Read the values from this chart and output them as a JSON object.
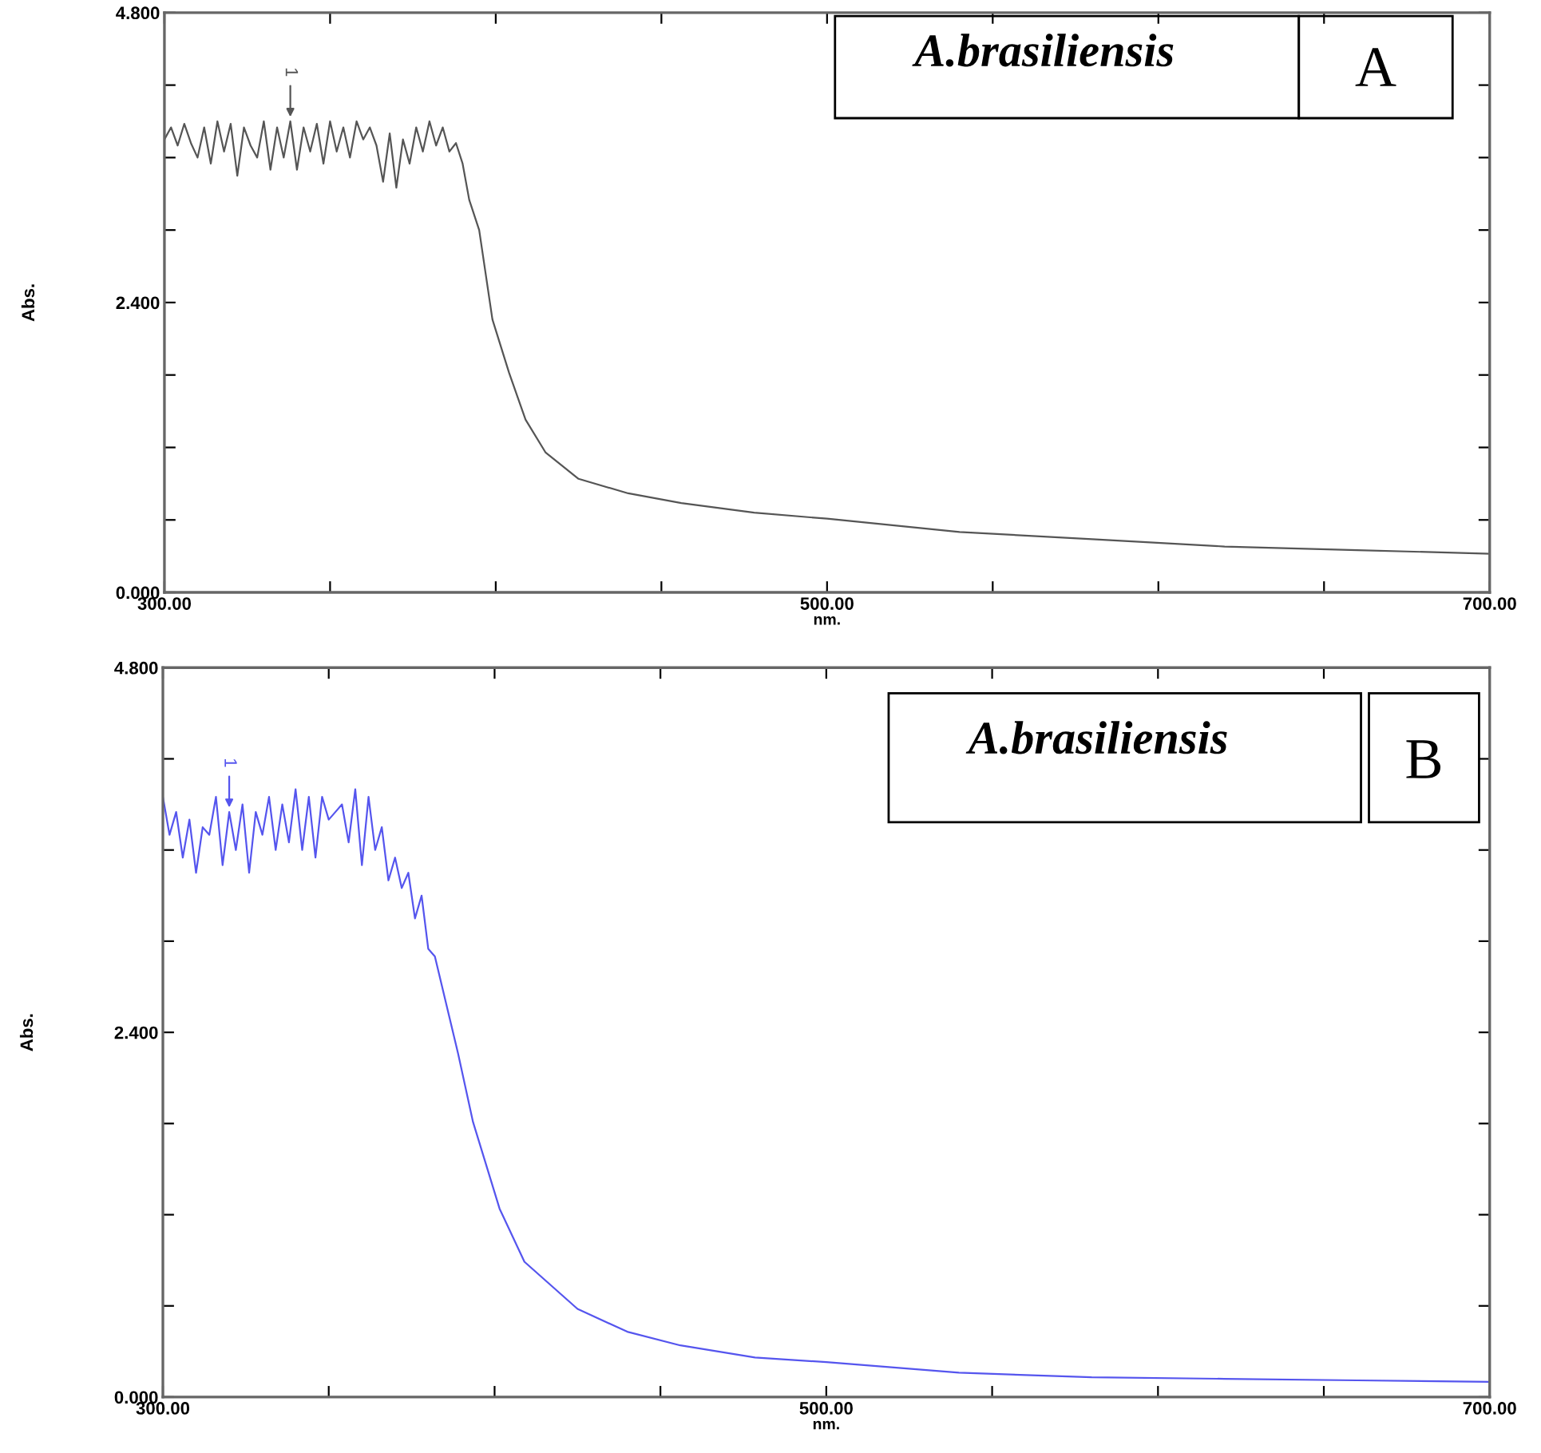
{
  "chart_data": [
    {
      "type": "line",
      "xlabel": "nm.",
      "ylabel": "Abs.",
      "annotations": [
        "A.brasiliensis",
        "A",
        {
          "text": "1",
          "x": 338,
          "y": 3.9
        }
      ],
      "series": [
        {
          "color": "#555555",
          "x": [
            300,
            302,
            304,
            306,
            308,
            310,
            312,
            314,
            316,
            318,
            320,
            322,
            324,
            326,
            328,
            330,
            332,
            334,
            336,
            338,
            340,
            342,
            344,
            346,
            348,
            350,
            352,
            354,
            356,
            358,
            360,
            362,
            364,
            366,
            368,
            370,
            372,
            374,
            376,
            378,
            380,
            382,
            384,
            386,
            388,
            390,
            392,
            395,
            399,
            404,
            409,
            415,
            425,
            440,
            456,
            478,
            500,
            540,
            580,
            620,
            660,
            700
          ],
          "values": [
            3.75,
            3.85,
            3.7,
            3.88,
            3.72,
            3.6,
            3.85,
            3.55,
            3.9,
            3.65,
            3.88,
            3.45,
            3.85,
            3.7,
            3.6,
            3.9,
            3.5,
            3.85,
            3.6,
            3.9,
            3.5,
            3.85,
            3.65,
            3.88,
            3.55,
            3.9,
            3.65,
            3.85,
            3.6,
            3.9,
            3.75,
            3.85,
            3.7,
            3.4,
            3.8,
            3.35,
            3.75,
            3.55,
            3.85,
            3.65,
            3.9,
            3.7,
            3.85,
            3.65,
            3.72,
            3.55,
            3.25,
            3.0,
            2.26,
            1.82,
            1.43,
            1.16,
            0.94,
            0.82,
            0.74,
            0.66,
            0.61,
            0.5,
            0.44,
            0.38,
            0.35,
            0.32
          ]
        }
      ],
      "xlim": [
        300,
        700
      ],
      "xticks": [
        {
          "value": 300,
          "label": "300.00"
        },
        {
          "value": 350,
          "label": null
        },
        {
          "value": 400,
          "label": null
        },
        {
          "value": 450,
          "label": null
        },
        {
          "value": 500,
          "label": "500.00"
        },
        {
          "value": 550,
          "label": null
        },
        {
          "value": 600,
          "label": null
        },
        {
          "value": 650,
          "label": null
        },
        {
          "value": 700,
          "label": "700.00"
        }
      ],
      "ylim": [
        0,
        4.8
      ],
      "yticks": [
        {
          "value": 0,
          "label": "0.000"
        },
        {
          "value": 0.6,
          "label": null
        },
        {
          "value": 1.2,
          "label": null
        },
        {
          "value": 1.8,
          "label": null
        },
        {
          "value": 2.4,
          "label": "2.400"
        },
        {
          "value": 3.0,
          "label": null
        },
        {
          "value": 3.6,
          "label": null
        },
        {
          "value": 4.2,
          "label": null
        },
        {
          "value": 4.8,
          "label": "4.800"
        }
      ],
      "grid": false,
      "legend": false,
      "marker": "none",
      "line_style": "solid"
    },
    {
      "type": "line",
      "xlabel": "nm.",
      "ylabel": "Abs.",
      "annotations": [
        "A.brasiliensis",
        "B",
        {
          "text": "1",
          "x": 320,
          "y": 3.85
        }
      ],
      "series": [
        {
          "color": "#5555ee",
          "x": [
            300,
            302,
            304,
            306,
            308,
            310,
            312,
            314,
            316,
            318,
            320,
            322,
            324,
            326,
            328,
            330,
            332,
            334,
            336,
            338,
            340,
            342,
            344,
            346,
            348,
            350,
            352,
            354,
            356,
            358,
            360,
            362,
            364,
            366,
            368,
            370,
            372,
            374,
            376,
            378,
            380,
            382,
            389,
            393.5,
            401.5,
            409,
            425,
            440,
            456,
            478.5,
            500,
            540,
            580,
            620,
            660,
            700
          ],
          "values": [
            3.95,
            3.7,
            3.85,
            3.55,
            3.8,
            3.45,
            3.75,
            3.7,
            3.95,
            3.5,
            3.85,
            3.6,
            3.9,
            3.45,
            3.85,
            3.7,
            3.95,
            3.6,
            3.9,
            3.65,
            4.0,
            3.6,
            3.95,
            3.55,
            3.95,
            3.8,
            3.85,
            3.9,
            3.65,
            4.0,
            3.5,
            3.95,
            3.6,
            3.75,
            3.4,
            3.55,
            3.35,
            3.45,
            3.15,
            3.3,
            2.95,
            2.9,
            2.26,
            1.81,
            1.24,
            0.89,
            0.58,
            0.43,
            0.34,
            0.26,
            0.23,
            0.16,
            0.13,
            0.12,
            0.11,
            0.1
          ]
        }
      ],
      "xlim": [
        300,
        700
      ],
      "xticks": [
        {
          "value": 300,
          "label": "300.00"
        },
        {
          "value": 350,
          "label": null
        },
        {
          "value": 400,
          "label": null
        },
        {
          "value": 450,
          "label": null
        },
        {
          "value": 500,
          "label": "500.00"
        },
        {
          "value": 550,
          "label": null
        },
        {
          "value": 600,
          "label": null
        },
        {
          "value": 650,
          "label": null
        },
        {
          "value": 700,
          "label": "700.00"
        }
      ],
      "ylim": [
        0,
        4.8
      ],
      "yticks": [
        {
          "value": 0,
          "label": "0.000"
        },
        {
          "value": 0.6,
          "label": null
        },
        {
          "value": 1.2,
          "label": null
        },
        {
          "value": 1.8,
          "label": null
        },
        {
          "value": 2.4,
          "label": "2.400"
        },
        {
          "value": 3.0,
          "label": null
        },
        {
          "value": 3.6,
          "label": null
        },
        {
          "value": 4.2,
          "label": null
        },
        {
          "value": 4.8,
          "label": "4.800"
        }
      ],
      "grid": false,
      "legend": false,
      "marker": "none",
      "line_style": "solid"
    }
  ]
}
